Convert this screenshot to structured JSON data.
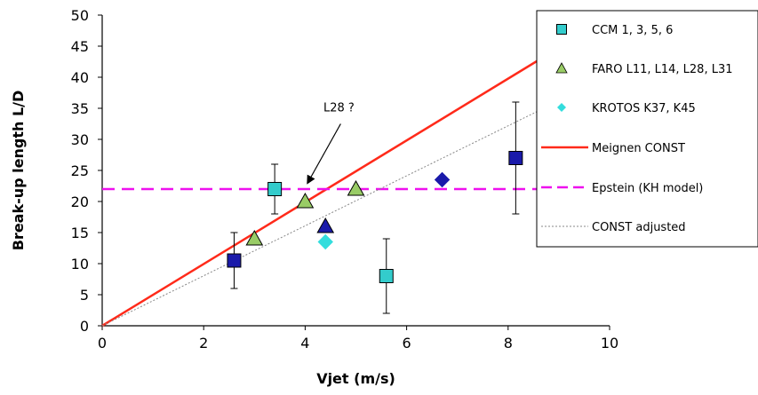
{
  "chart_data": {
    "type": "scatter",
    "title": "",
    "xlabel": "Vjet  (m/s)",
    "ylabel": "Break-up length L/D",
    "xlim": [
      0,
      10
    ],
    "ylim": [
      0,
      50
    ],
    "x_ticks": [
      0,
      2,
      4,
      6,
      8,
      10
    ],
    "y_ticks": [
      0,
      5,
      10,
      15,
      20,
      25,
      30,
      35,
      40,
      45,
      50
    ],
    "grid": false,
    "legend_position": "top-right",
    "series": [
      {
        "name": "CCM 1, 3, 5, 6",
        "kind": "points",
        "marker": "square",
        "color": "#33cccc",
        "points": [
          {
            "x": 3.4,
            "y": 22,
            "err_low": 18,
            "err_high": 26
          },
          {
            "x": 5.6,
            "y": 8,
            "err_low": 2,
            "err_high": 14
          }
        ]
      },
      {
        "name": "FARO L11, L14, L28, L31",
        "kind": "points",
        "marker": "triangle",
        "color": "#99cc66",
        "points": [
          {
            "x": 3.0,
            "y": 14
          },
          {
            "x": 4.0,
            "y": 20
          },
          {
            "x": 5.0,
            "y": 22
          }
        ]
      },
      {
        "name": "KROTOS K37, K45",
        "kind": "points",
        "marker": "diamond",
        "color": "#33dddd",
        "points": [
          {
            "x": 4.4,
            "y": 13.5
          }
        ]
      },
      {
        "name": "Meignen CONST",
        "kind": "line",
        "color": "#ff2a1a",
        "style": "solid",
        "points": [
          {
            "x": 0,
            "y": 0
          },
          {
            "x": 8.75,
            "y": 43.5
          }
        ]
      },
      {
        "name": "Epstein (KH model)",
        "kind": "line",
        "color": "#ee11ee",
        "style": "dashed",
        "points": [
          {
            "x": 0,
            "y": 22
          },
          {
            "x": 10,
            "y": 22
          }
        ]
      },
      {
        "name": "CONST adjusted",
        "kind": "line",
        "color": "#888888",
        "style": "dotted",
        "points": [
          {
            "x": 0,
            "y": 0
          },
          {
            "x": 8.75,
            "y": 35.2
          }
        ]
      }
    ],
    "extra_points": [
      {
        "x": 2.6,
        "y": 10.5,
        "marker": "square",
        "color": "#1a1aaa",
        "err_low": 6,
        "err_high": 15
      },
      {
        "x": 8.15,
        "y": 27,
        "marker": "square",
        "color": "#1a1aaa",
        "err_low": 18,
        "err_high": 36
      },
      {
        "x": 4.4,
        "y": 16,
        "marker": "triangle",
        "color": "#1a1aaa"
      },
      {
        "x": 6.7,
        "y": 23.5,
        "marker": "diamond",
        "color": "#1a1aaa"
      }
    ],
    "annotations": [
      {
        "text": "L28 ?",
        "arrow_from": [
          4.7,
          32.5
        ],
        "arrow_to": [
          4.05,
          23
        ]
      }
    ]
  }
}
